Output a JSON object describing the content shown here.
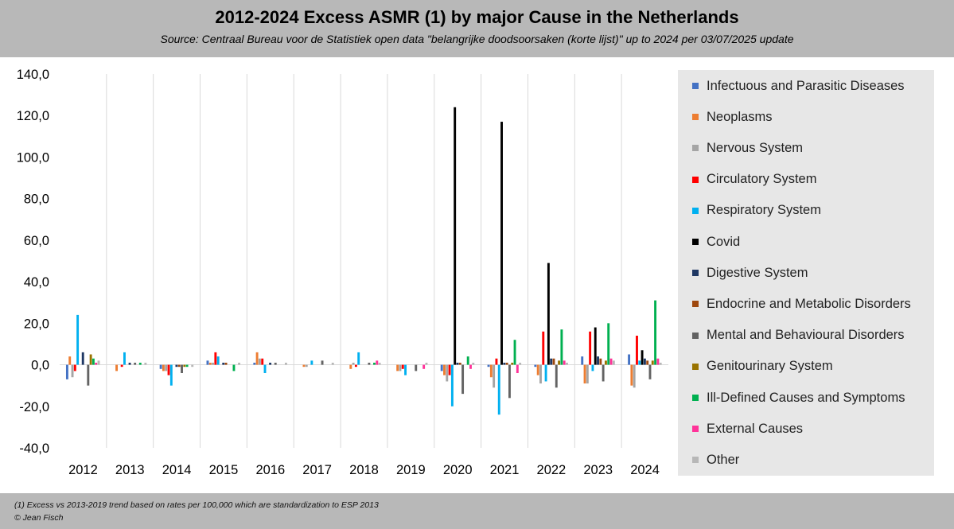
{
  "header": {
    "title": "2012-2024 Excess ASMR (1) by major Cause in the Netherlands",
    "subtitle": "Source: Centraal Bureau voor de Statistiek open data \"belangrijke doodsoorsaken (korte lijst)\" up to 2024 per 03/07/2025 update"
  },
  "footer": {
    "footnote": "(1) Excess vs 2013-2019 trend based on rates per 100,000 which are standardization to ESP 2013",
    "credit": "© Jean Fisch"
  },
  "chart_data": {
    "type": "bar",
    "title": "2012-2024 Excess ASMR (1) by major Cause in the Netherlands",
    "xlabel": "",
    "ylabel": "",
    "ylim": [
      -40,
      140
    ],
    "yticks": [
      "140,0",
      "120,0",
      "100,0",
      "80,0",
      "60,0",
      "40,0",
      "20,0",
      "0,0",
      "-20,0",
      "-40,0"
    ],
    "ytick_values": [
      140,
      120,
      100,
      80,
      60,
      40,
      20,
      0,
      -20,
      -40
    ],
    "categories": [
      "2012",
      "2013",
      "2014",
      "2015",
      "2016",
      "2017",
      "2018",
      "2019",
      "2020",
      "2021",
      "2022",
      "2023",
      "2024"
    ],
    "legend_position": "right",
    "series": [
      {
        "name": "Infectuous and Parasitic Diseases",
        "color": "#4472c4",
        "values": [
          -7,
          0,
          -2,
          2,
          1,
          0,
          0,
          0,
          -3,
          -1,
          -1,
          4,
          5
        ]
      },
      {
        "name": "Neoplasms",
        "color": "#ed7d31",
        "values": [
          4,
          -3,
          -3,
          1,
          6,
          -1,
          -2,
          -3,
          -5,
          -6,
          -5,
          -9,
          -10
        ]
      },
      {
        "name": "Nervous System",
        "color": "#a5a5a5",
        "values": [
          -6,
          0,
          -3,
          1,
          3,
          -1,
          1,
          -3,
          -8,
          -11,
          -9,
          -9,
          -11
        ]
      },
      {
        "name": "Circulatory System",
        "color": "#ff0000",
        "values": [
          -3,
          -1,
          -5,
          6,
          3,
          0,
          -1,
          -2,
          -5,
          3,
          16,
          16,
          14
        ]
      },
      {
        "name": "Respiratory System",
        "color": "#00b0f0",
        "values": [
          24,
          6,
          -10,
          4,
          -4,
          2,
          6,
          -5,
          -20,
          -24,
          -8,
          -3,
          2
        ]
      },
      {
        "name": "Covid",
        "color": "#000000",
        "values": [
          0,
          0,
          0,
          0,
          0,
          0,
          0,
          0,
          124,
          117,
          49,
          18,
          7
        ]
      },
      {
        "name": "Digestive System",
        "color": "#1f3864",
        "values": [
          6,
          1,
          -1,
          1,
          1,
          0,
          0,
          0,
          1,
          1,
          3,
          4,
          3
        ]
      },
      {
        "name": "Endocrine and Metabolic Disorders",
        "color": "#9e480e",
        "values": [
          0,
          0,
          -1,
          1,
          0,
          0,
          0,
          0,
          1,
          1,
          3,
          3,
          2
        ]
      },
      {
        "name": "Mental and Behavioural Disorders",
        "color": "#636363",
        "values": [
          -10,
          1,
          -4,
          0,
          1,
          2,
          1,
          -3,
          -14,
          -16,
          -11,
          -8,
          -7
        ]
      },
      {
        "name": "Genitourinary System",
        "color": "#997300",
        "values": [
          5,
          0,
          -1,
          0,
          0,
          0,
          0,
          0,
          0,
          1,
          2,
          2,
          2
        ]
      },
      {
        "name": "Ill-Defined Causes and Symptoms",
        "color": "#00b050",
        "values": [
          3,
          1,
          -1,
          -3,
          0,
          0,
          1,
          0,
          4,
          12,
          17,
          20,
          31
        ]
      },
      {
        "name": "External Causes",
        "color": "#ff3399",
        "values": [
          1,
          0,
          0,
          0,
          0,
          0,
          2,
          -2,
          -2,
          -4,
          2,
          3,
          3
        ]
      },
      {
        "name": "Other",
        "color": "#b7b7b7",
        "values": [
          2,
          1,
          -1,
          1,
          1,
          1,
          1,
          1,
          1,
          1,
          1,
          2,
          1
        ]
      }
    ]
  }
}
